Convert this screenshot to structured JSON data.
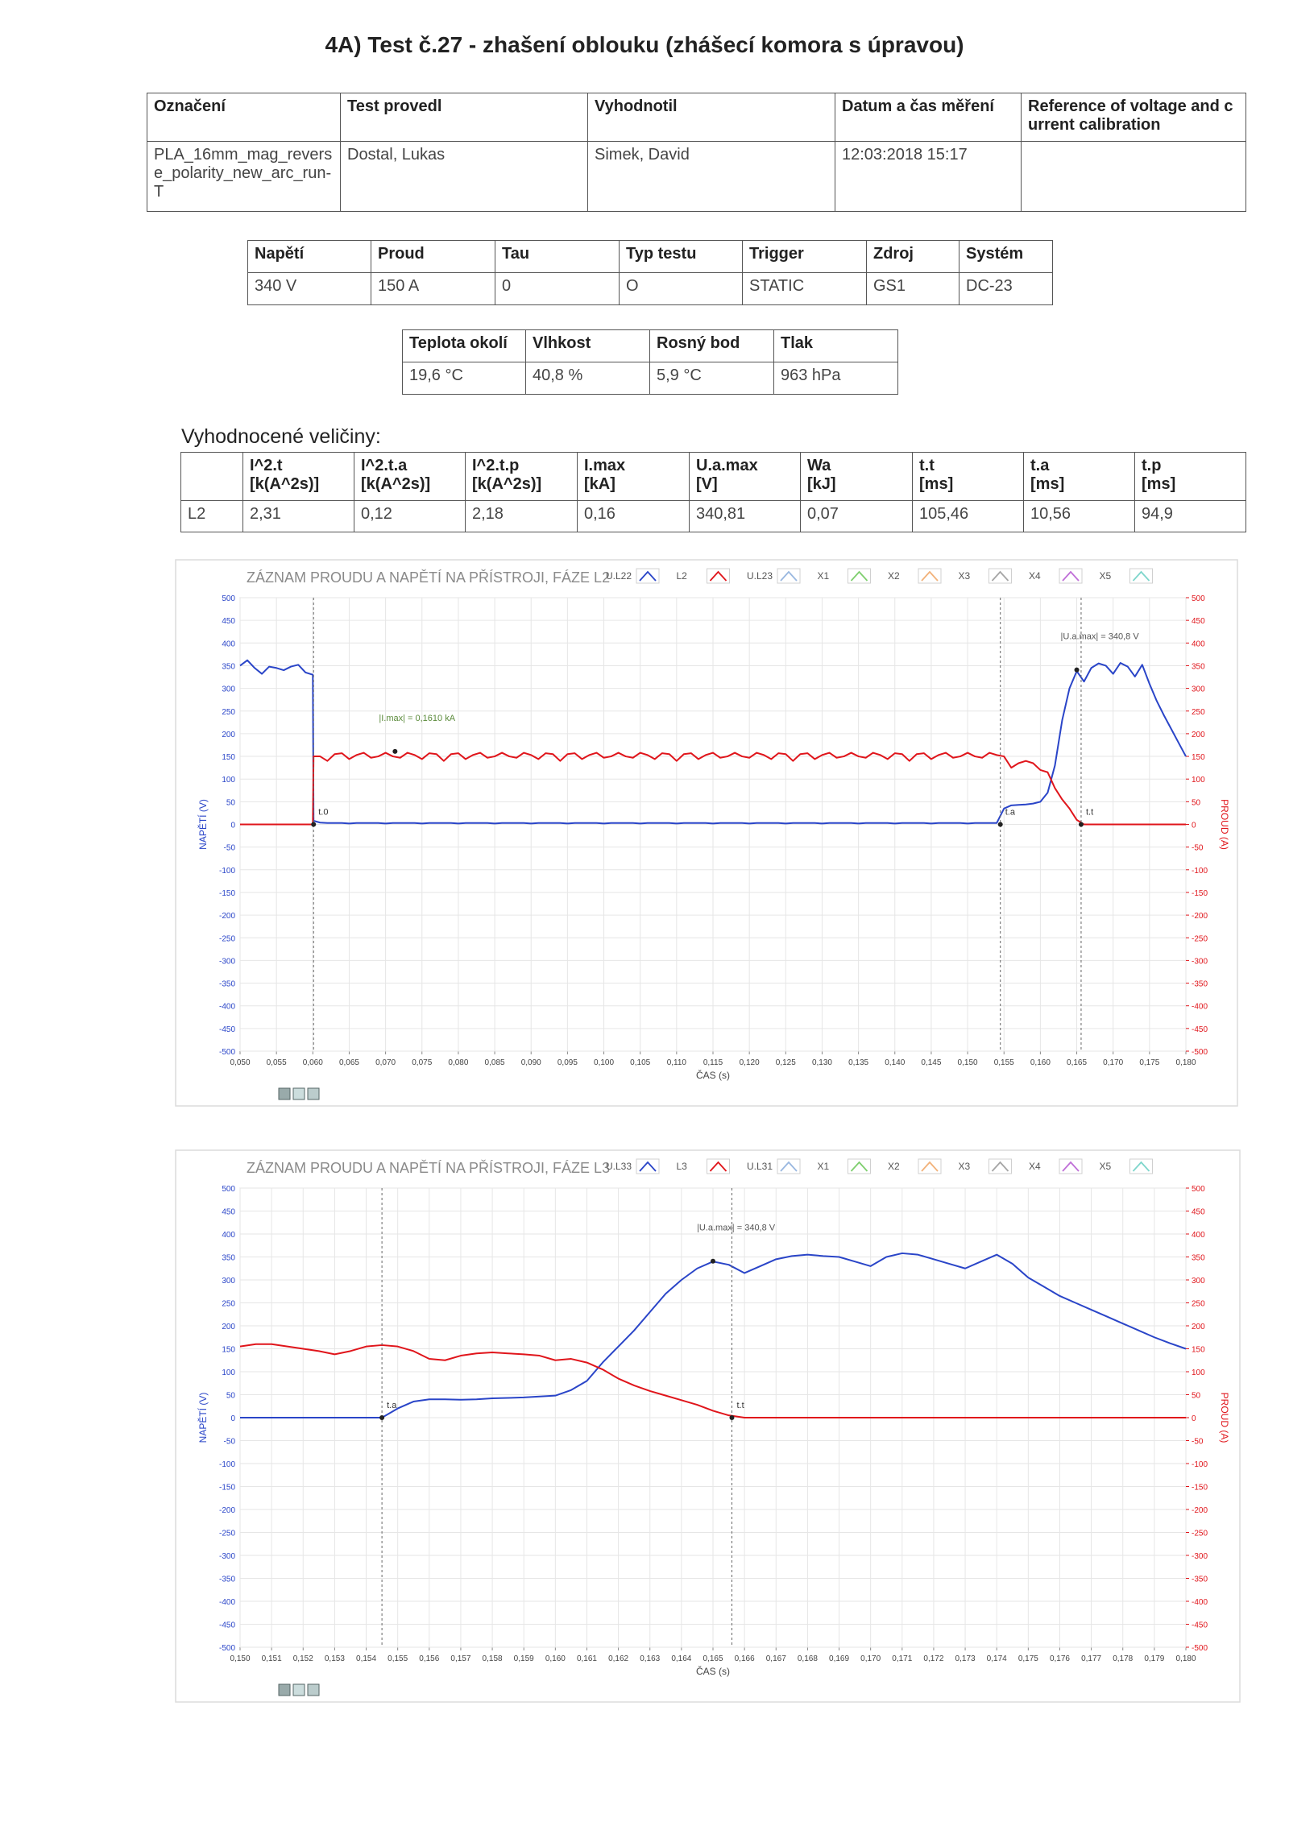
{
  "header": {
    "title": "4A) Test č.27 - zhašení oblouku (zhášecí komora s úpravou)"
  },
  "tables": [
    {
      "columns": [
        "Označení",
        "Test provedl",
        "Vyhodnotil",
        "Datum a čas měření",
        "Reference of voltage and current calibration"
      ],
      "rows": [
        [
          "PLA_16mm_mag_reverse_polarity_new_arc_run-T",
          "Dostal, Lukas",
          "Simek, David",
          "12:03:2018 15:17",
          null
        ]
      ]
    },
    {
      "columns": [
        "Napětí",
        "Proud",
        "Tau",
        "Typ testu",
        "Trigger",
        "Zdroj",
        "Systém"
      ],
      "rows": [
        [
          "340 V",
          "150 A",
          "0",
          "O",
          "STATIC",
          "GS1",
          "DC-23"
        ]
      ]
    },
    {
      "columns": [
        "Teplota okolí",
        "Vlhkost",
        "Rosný bod",
        "Tlak"
      ],
      "rows": [
        [
          "19,6 °C",
          "40,8 %",
          "5,9 °C",
          "963 hPa"
        ]
      ]
    },
    {
      "caption": "Vyhodnocené veličiny:",
      "columns": [
        null,
        "I^2.t\n[k(A^2s)]",
        "I^2.t.a\n[k(A^2s)]",
        "I^2.t.p\n[k(A^2s)]",
        "I.max\n[kA]",
        "U.a.max\n[V]",
        "Wa\n[kJ]",
        "t.t\n[ms]",
        "t.a\n[ms]",
        "t.p\n[ms]"
      ],
      "rows": [
        [
          "L2",
          "2,31",
          "0,12",
          "2,18",
          "0,16",
          "340,81",
          "0,07",
          "105,46",
          "10,56",
          "94,9"
        ]
      ]
    }
  ],
  "chart_data": [
    {
      "type": "line",
      "title": "ZÁZNAM PROUDU A NAPĚTÍ NA PŘÍSTROJI, FÁZE L2",
      "x_label": "ČAS (s)",
      "y_label": "NAPĚTÍ (V)",
      "y2_label": "PROUD (A)",
      "y_color": "#2a45c8",
      "y2_color": "#e0151b",
      "grid": true,
      "xlim": [
        0.05,
        0.18
      ],
      "xticks": [
        {
          "value": 0.05,
          "label": "0,050"
        },
        {
          "value": 0.055,
          "label": "0,055"
        },
        {
          "value": 0.06,
          "label": "0,060"
        },
        {
          "value": 0.065,
          "label": "0,065"
        },
        {
          "value": 0.07,
          "label": "0,070"
        },
        {
          "value": 0.075,
          "label": "0,075"
        },
        {
          "value": 0.08,
          "label": "0,080"
        },
        {
          "value": 0.085,
          "label": "0,085"
        },
        {
          "value": 0.09,
          "label": "0,090"
        },
        {
          "value": 0.095,
          "label": "0,095"
        },
        {
          "value": 0.1,
          "label": "0,100"
        },
        {
          "value": 0.105,
          "label": "0,105"
        },
        {
          "value": 0.11,
          "label": "0,110"
        },
        {
          "value": 0.115,
          "label": "0,115"
        },
        {
          "value": 0.12,
          "label": "0,120"
        },
        {
          "value": 0.125,
          "label": "0,125"
        },
        {
          "value": 0.13,
          "label": "0,130"
        },
        {
          "value": 0.135,
          "label": "0,135"
        },
        {
          "value": 0.14,
          "label": "0,140"
        },
        {
          "value": 0.145,
          "label": "0,145"
        },
        {
          "value": 0.15,
          "label": "0,150"
        },
        {
          "value": 0.155,
          "label": "0,155"
        },
        {
          "value": 0.16,
          "label": "0,160"
        },
        {
          "value": 0.165,
          "label": "0,165"
        },
        {
          "value": 0.17,
          "label": "0,170"
        },
        {
          "value": 0.175,
          "label": "0,175"
        },
        {
          "value": 0.18,
          "label": "0,180"
        }
      ],
      "ylim": [
        -500,
        500
      ],
      "yticks": [
        -500,
        -450,
        -400,
        -350,
        -300,
        -250,
        -200,
        -150,
        -100,
        -50,
        0,
        50,
        100,
        150,
        200,
        250,
        300,
        350,
        400,
        450,
        500
      ],
      "y2lim": [
        -500,
        500
      ],
      "y2ticks": [
        -500,
        -450,
        -400,
        -350,
        -300,
        -250,
        -200,
        -150,
        -100,
        -50,
        0,
        50,
        100,
        150,
        200,
        250,
        300,
        350,
        400,
        450,
        500
      ],
      "x": [
        0.05,
        0.051,
        0.052,
        0.053,
        0.054,
        0.055,
        0.056,
        0.057,
        0.058,
        0.059,
        0.06,
        0.0601,
        0.061,
        0.062,
        0.063,
        0.064,
        0.065,
        0.066,
        0.067,
        0.068,
        0.069,
        0.07,
        0.071,
        0.072,
        0.073,
        0.074,
        0.075,
        0.076,
        0.077,
        0.078,
        0.079,
        0.08,
        0.081,
        0.082,
        0.083,
        0.084,
        0.085,
        0.086,
        0.087,
        0.088,
        0.089,
        0.09,
        0.091,
        0.092,
        0.093,
        0.094,
        0.095,
        0.096,
        0.097,
        0.098,
        0.099,
        0.1,
        0.101,
        0.102,
        0.103,
        0.104,
        0.105,
        0.106,
        0.107,
        0.108,
        0.109,
        0.11,
        0.111,
        0.112,
        0.113,
        0.114,
        0.115,
        0.116,
        0.117,
        0.118,
        0.119,
        0.12,
        0.121,
        0.122,
        0.123,
        0.124,
        0.125,
        0.126,
        0.127,
        0.128,
        0.129,
        0.13,
        0.131,
        0.132,
        0.133,
        0.134,
        0.135,
        0.136,
        0.137,
        0.138,
        0.139,
        0.14,
        0.141,
        0.142,
        0.143,
        0.144,
        0.145,
        0.146,
        0.147,
        0.148,
        0.149,
        0.15,
        0.151,
        0.152,
        0.153,
        0.154,
        0.155,
        0.156,
        0.157,
        0.158,
        0.159,
        0.16,
        0.161,
        0.162,
        0.163,
        0.164,
        0.165,
        0.166,
        0.167,
        0.168,
        0.169,
        0.17,
        0.171,
        0.172,
        0.173,
        0.174,
        0.175,
        0.176,
        0.177,
        0.178,
        0.179,
        0.18
      ],
      "series": [
        {
          "name": "U.L22",
          "color": "#2a45c8",
          "values": [
            350,
            362,
            345,
            332,
            348,
            345,
            340,
            348,
            352,
            335,
            330,
            8,
            4,
            3,
            3,
            3,
            2,
            3,
            3,
            3,
            3,
            2,
            3,
            3,
            3,
            3,
            2,
            3,
            3,
            3,
            3,
            2,
            3,
            3,
            3,
            3,
            2,
            3,
            3,
            3,
            3,
            2,
            3,
            3,
            3,
            3,
            2,
            3,
            3,
            3,
            3,
            2,
            3,
            3,
            3,
            3,
            2,
            3,
            3,
            3,
            3,
            2,
            3,
            3,
            3,
            3,
            2,
            3,
            3,
            3,
            3,
            2,
            3,
            3,
            3,
            3,
            2,
            3,
            3,
            3,
            3,
            2,
            3,
            3,
            3,
            3,
            2,
            3,
            3,
            3,
            3,
            2,
            3,
            3,
            3,
            3,
            2,
            3,
            3,
            3,
            3,
            2,
            3,
            3,
            3,
            3,
            35,
            42,
            43,
            44,
            46,
            50,
            70,
            130,
            230,
            300,
            338,
            315,
            345,
            355,
            350,
            332,
            356,
            348,
            326,
            352,
            310,
            272,
            240,
            210,
            180,
            150
          ]
        },
        {
          "name": "L2",
          "color": "#e0151b",
          "axis": "y2",
          "values": [
            0,
            0,
            0,
            0,
            0,
            0,
            0,
            0,
            0,
            0,
            0,
            150,
            150,
            140,
            155,
            157,
            144,
            153,
            158,
            147,
            150,
            158,
            150,
            147,
            158,
            153,
            144,
            157,
            155,
            140,
            155,
            157,
            144,
            153,
            158,
            147,
            150,
            158,
            150,
            147,
            158,
            153,
            144,
            157,
            155,
            140,
            155,
            157,
            144,
            153,
            158,
            147,
            150,
            158,
            150,
            147,
            158,
            153,
            144,
            157,
            155,
            140,
            155,
            157,
            144,
            153,
            158,
            147,
            150,
            158,
            150,
            147,
            158,
            153,
            144,
            157,
            155,
            140,
            155,
            157,
            144,
            153,
            158,
            147,
            150,
            158,
            150,
            147,
            158,
            153,
            144,
            157,
            155,
            140,
            155,
            157,
            144,
            153,
            158,
            147,
            150,
            158,
            150,
            147,
            158,
            153,
            150,
            125,
            135,
            140,
            135,
            120,
            115,
            80,
            55,
            35,
            10,
            0,
            0,
            0,
            0,
            0,
            0,
            0,
            0,
            0,
            0,
            0,
            0,
            0,
            0,
            0
          ]
        },
        {
          "name": "U.L23",
          "color": "#9ab8e0"
        },
        {
          "name": "X1",
          "color": "#7fcf6f"
        },
        {
          "name": "X2",
          "color": "#f2b27a"
        },
        {
          "name": "X3",
          "color": "#a6a6a6"
        },
        {
          "name": "X4",
          "color": "#c070d8"
        },
        {
          "name": "X5",
          "color": "#7fd6cc"
        }
      ],
      "markers": [
        {
          "label": "t.0",
          "x": 0.0601,
          "y": 0
        },
        {
          "label": "t.a",
          "x": 0.1545,
          "y": 0
        },
        {
          "label": "t.t",
          "x": 0.1656,
          "y": 0
        }
      ],
      "annotations": [
        {
          "text": "|I.max| = 0,1610 kA",
          "x": 0.0713,
          "y": 161,
          "color": "#5a8a3a"
        },
        {
          "text": "|U.a.max| = 340,8 V",
          "x": 0.165,
          "y": 340.8,
          "color": "#555555"
        }
      ]
    },
    {
      "type": "line",
      "title": "ZÁZNAM PROUDU A NAPĚTÍ NA PŘÍSTROJI, FÁZE L3",
      "x_label": "ČAS (s)",
      "y_label": "NAPĚTÍ (V)",
      "y2_label": "PROUD (A)",
      "y_color": "#2a45c8",
      "y2_color": "#e0151b",
      "grid": true,
      "xlim": [
        0.15,
        0.18
      ],
      "xticks": [
        {
          "value": 0.15,
          "label": "0,150"
        },
        {
          "value": 0.151,
          "label": "0,151"
        },
        {
          "value": 0.152,
          "label": "0,152"
        },
        {
          "value": 0.153,
          "label": "0,153"
        },
        {
          "value": 0.154,
          "label": "0,154"
        },
        {
          "value": 0.155,
          "label": "0,155"
        },
        {
          "value": 0.156,
          "label": "0,156"
        },
        {
          "value": 0.157,
          "label": "0,157"
        },
        {
          "value": 0.158,
          "label": "0,158"
        },
        {
          "value": 0.159,
          "label": "0,159"
        },
        {
          "value": 0.16,
          "label": "0,160"
        },
        {
          "value": 0.161,
          "label": "0,161"
        },
        {
          "value": 0.162,
          "label": "0,162"
        },
        {
          "value": 0.163,
          "label": "0,163"
        },
        {
          "value": 0.164,
          "label": "0,164"
        },
        {
          "value": 0.165,
          "label": "0,165"
        },
        {
          "value": 0.166,
          "label": "0,166"
        },
        {
          "value": 0.167,
          "label": "0,167"
        },
        {
          "value": 0.168,
          "label": "0,168"
        },
        {
          "value": 0.169,
          "label": "0,169"
        },
        {
          "value": 0.17,
          "label": "0,170"
        },
        {
          "value": 0.171,
          "label": "0,171"
        },
        {
          "value": 0.172,
          "label": "0,172"
        },
        {
          "value": 0.173,
          "label": "0,173"
        },
        {
          "value": 0.174,
          "label": "0,174"
        },
        {
          "value": 0.175,
          "label": "0,175"
        },
        {
          "value": 0.176,
          "label": "0,176"
        },
        {
          "value": 0.177,
          "label": "0,177"
        },
        {
          "value": 0.178,
          "label": "0,178"
        },
        {
          "value": 0.179,
          "label": "0,179"
        },
        {
          "value": 0.18,
          "label": "0,180"
        }
      ],
      "ylim": [
        -500,
        500
      ],
      "yticks": [
        -500,
        -450,
        -400,
        -350,
        -300,
        -250,
        -200,
        -150,
        -100,
        -50,
        0,
        50,
        100,
        150,
        200,
        250,
        300,
        350,
        400,
        450,
        500
      ],
      "y2lim": [
        -500,
        500
      ],
      "y2ticks": [
        -500,
        -450,
        -400,
        -350,
        -300,
        -250,
        -200,
        -150,
        -100,
        -50,
        0,
        50,
        100,
        150,
        200,
        250,
        300,
        350,
        400,
        450,
        500
      ],
      "x": [
        0.15,
        0.1505,
        0.151,
        0.1515,
        0.152,
        0.1525,
        0.153,
        0.1535,
        0.154,
        0.1545,
        0.155,
        0.1555,
        0.156,
        0.1565,
        0.157,
        0.1575,
        0.158,
        0.1585,
        0.159,
        0.1595,
        0.16,
        0.1605,
        0.161,
        0.1615,
        0.162,
        0.1625,
        0.163,
        0.1635,
        0.164,
        0.1645,
        0.165,
        0.1655,
        0.166,
        0.1665,
        0.167,
        0.1675,
        0.168,
        0.1685,
        0.169,
        0.1695,
        0.17,
        0.1705,
        0.171,
        0.1715,
        0.172,
        0.1725,
        0.173,
        0.1735,
        0.174,
        0.1745,
        0.175,
        0.1755,
        0.176,
        0.1765,
        0.177,
        0.1775,
        0.178,
        0.1785,
        0.179,
        0.1795,
        0.18
      ],
      "series": [
        {
          "name": "U.L33",
          "color": "#2a45c8",
          "values": [
            0,
            0,
            0,
            0,
            0,
            0,
            0,
            0,
            0,
            0,
            20,
            35,
            40,
            40,
            39,
            40,
            42,
            43,
            44,
            46,
            48,
            60,
            80,
            120,
            155,
            190,
            230,
            270,
            300,
            325,
            340,
            333,
            315,
            330,
            345,
            352,
            355,
            352,
            350,
            340,
            330,
            350,
            358,
            355,
            345,
            335,
            325,
            340,
            355,
            335,
            305,
            285,
            265,
            250,
            235,
            220,
            205,
            190,
            175,
            162,
            150
          ]
        },
        {
          "name": "L3",
          "color": "#e0151b",
          "axis": "y2",
          "values": [
            155,
            160,
            160,
            155,
            150,
            145,
            138,
            145,
            155,
            158,
            155,
            145,
            128,
            125,
            135,
            140,
            142,
            140,
            138,
            135,
            125,
            128,
            120,
            105,
            85,
            70,
            58,
            48,
            38,
            28,
            15,
            5,
            0,
            0,
            0,
            0,
            0,
            0,
            0,
            0,
            0,
            0,
            0,
            0,
            0,
            0,
            0,
            0,
            0,
            0,
            0,
            0,
            0,
            0,
            0,
            0,
            0,
            0,
            0,
            0,
            0
          ]
        },
        {
          "name": "U.L31",
          "color": "#9ab8e0"
        },
        {
          "name": "X1",
          "color": "#7fcf6f"
        },
        {
          "name": "X2",
          "color": "#f2b27a"
        },
        {
          "name": "X3",
          "color": "#a6a6a6"
        },
        {
          "name": "X4",
          "color": "#c070d8"
        },
        {
          "name": "X5",
          "color": "#7fd6cc"
        }
      ],
      "markers": [
        {
          "label": "t.a",
          "x": 0.1545,
          "y": 0
        },
        {
          "label": "t.t",
          "x": 0.1656,
          "y": 0
        }
      ],
      "annotations": [
        {
          "text": "|U.a.max| = 340,8 V",
          "x": 0.165,
          "y": 340.8,
          "color": "#555555"
        }
      ]
    }
  ]
}
